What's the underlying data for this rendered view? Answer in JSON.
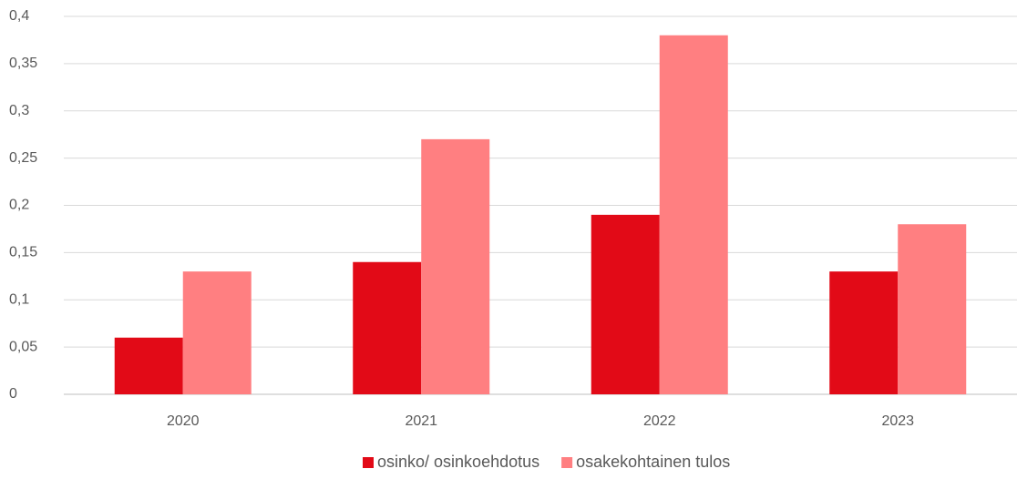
{
  "chart_data": {
    "type": "bar",
    "categories": [
      "2020",
      "2021",
      "2022",
      "2023"
    ],
    "series": [
      {
        "name": "osinko/ osinkoehdotus",
        "color": "#e20a17",
        "values": [
          0.06,
          0.14,
          0.19,
          0.13
        ]
      },
      {
        "name": "osakekohtainen tulos",
        "color": "#ff7f81",
        "values": [
          0.13,
          0.27,
          0.38,
          0.18
        ]
      }
    ],
    "ylim": [
      0,
      0.4
    ],
    "yticks": [
      0,
      {
        "value": 0.05,
        "label": "0,05"
      },
      {
        "value": 0.1,
        "label": "0,1"
      },
      {
        "value": 0.15,
        "label": "0,15"
      },
      {
        "value": 0.2,
        "label": "0,2"
      },
      {
        "value": 0.25,
        "label": "0,25"
      },
      {
        "value": 0.3,
        "label": "0,3"
      },
      {
        "value": 0.35,
        "label": "0,35"
      },
      {
        "value": 0.4,
        "label": "0,4"
      }
    ],
    "grid": true,
    "legend": "bottom"
  }
}
